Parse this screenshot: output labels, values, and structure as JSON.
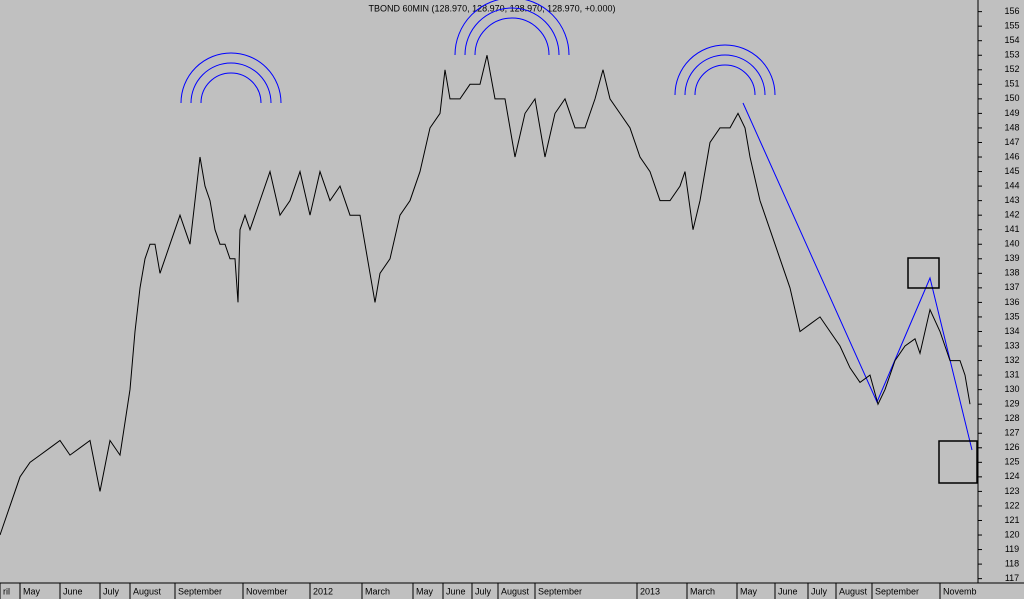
{
  "chart_data": {
    "type": "line",
    "title": "TBOND 60MIN (128.970, 128.970, 128.970, 128.970, +0.000)",
    "color": "#000000",
    "x": [
      0,
      10,
      20,
      30,
      40,
      50,
      60,
      70,
      80,
      90,
      100,
      110,
      120,
      130,
      135,
      140,
      145,
      150,
      155,
      160,
      165,
      170,
      175,
      180,
      190,
      200,
      205,
      210,
      215,
      220,
      225,
      230,
      235,
      238,
      240,
      245,
      250,
      260,
      270,
      280,
      290,
      300,
      310,
      320,
      330,
      340,
      350,
      360,
      365,
      370,
      375,
      380,
      390,
      400,
      410,
      420,
      430,
      440,
      445,
      450,
      460,
      470,
      480,
      487,
      495,
      505,
      515,
      525,
      535,
      545,
      555,
      565,
      575,
      585,
      595,
      603,
      610,
      620,
      630,
      640,
      650,
      660,
      670,
      680,
      685,
      693,
      700,
      710,
      720,
      730,
      738,
      745,
      750,
      760,
      770,
      780,
      790,
      800,
      810,
      820,
      830,
      840,
      850,
      860,
      870,
      878,
      885,
      895,
      905,
      915,
      920,
      930,
      940,
      950,
      960,
      965,
      970
    ],
    "values": [
      120,
      122,
      124,
      125,
      125.5,
      126,
      126.5,
      125.5,
      126,
      126.5,
      123,
      126.5,
      125.5,
      130,
      134,
      137,
      139,
      140,
      140,
      138,
      139,
      140,
      141,
      142,
      140,
      146,
      144,
      143,
      141,
      140,
      140,
      139,
      139,
      136,
      141,
      142,
      141,
      143,
      145,
      142,
      143,
      145,
      142,
      145,
      143,
      144,
      142,
      142,
      140,
      138,
      136,
      138,
      139,
      142,
      143,
      145,
      148,
      149,
      152,
      150,
      150,
      151,
      151,
      153,
      150,
      150,
      146,
      149,
      150,
      146,
      149,
      150,
      148,
      148,
      150,
      152,
      150,
      149,
      148,
      146,
      145,
      143,
      143,
      144,
      145,
      141,
      143,
      147,
      148,
      148,
      149,
      148,
      146,
      143,
      141,
      139,
      137,
      134,
      134.5,
      135,
      134,
      133,
      131.5,
      130.5,
      131,
      129,
      130,
      132,
      133,
      133.5,
      132.5,
      135.5,
      134,
      132,
      132,
      131,
      129
    ],
    "xlim": [
      0,
      978
    ],
    "xticks": [
      {
        "value": 0,
        "label": "ril"
      },
      {
        "value": 20,
        "label": "May"
      },
      {
        "value": 60,
        "label": "June"
      },
      {
        "value": 100,
        "label": "July"
      },
      {
        "value": 130,
        "label": "August"
      },
      {
        "value": 175,
        "label": "September"
      },
      {
        "value": 243,
        "label": "November"
      },
      {
        "value": 310,
        "label": "2012"
      },
      {
        "value": 362,
        "label": "March"
      },
      {
        "value": 413,
        "label": "May"
      },
      {
        "value": 443,
        "label": "June"
      },
      {
        "value": 472,
        "label": "July"
      },
      {
        "value": 498,
        "label": "August"
      },
      {
        "value": 535,
        "label": "September"
      },
      {
        "value": 637,
        "label": "2013"
      },
      {
        "value": 687,
        "label": "March"
      },
      {
        "value": 737,
        "label": "May"
      },
      {
        "value": 775,
        "label": "June"
      },
      {
        "value": 808,
        "label": "July"
      },
      {
        "value": 836,
        "label": "August"
      },
      {
        "value": 872,
        "label": "September"
      },
      {
        "value": 940,
        "label": "Novemb"
      }
    ],
    "ylim": [
      116.7,
      156.8
    ],
    "yticks": [
      117,
      118,
      119,
      120,
      121,
      122,
      123,
      124,
      125,
      126,
      127,
      128,
      129,
      130,
      131,
      132,
      133,
      134,
      135,
      136,
      137,
      138,
      139,
      140,
      141,
      142,
      143,
      144,
      145,
      146,
      147,
      148,
      149,
      150,
      151,
      152,
      153,
      154,
      155,
      156
    ]
  }
}
